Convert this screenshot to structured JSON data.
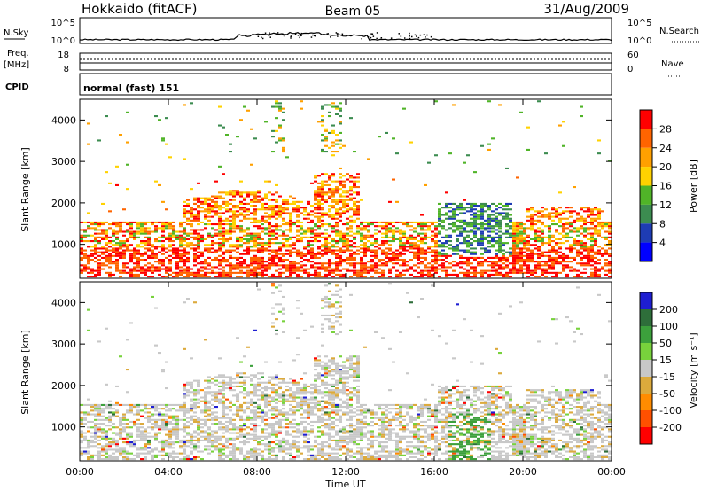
{
  "header": {
    "radar": "Hokkaido (fitACF)",
    "beam": "Beam 05",
    "date": "31/Aug/2009"
  },
  "summary_panels": {
    "nsky": {
      "label": "N.Sky",
      "ticks": [
        "10^5",
        "10^0"
      ],
      "right_label": "N.Search",
      "right_ticks": [
        "10^5",
        "10^0"
      ]
    },
    "freq": {
      "label_1": "Freq.",
      "label_2": "[MHz]",
      "ticks": [
        "18",
        "8"
      ],
      "right_label": "Nave",
      "right_ticks": [
        "60",
        "0"
      ]
    },
    "cpid": {
      "label": "CPID",
      "value": "normal (fast) 151"
    }
  },
  "colors": {
    "power": [
      "#0000ff",
      "#1e3cb4",
      "#3c8c50",
      "#50b428",
      "#ffd200",
      "#ffa000",
      "#ff6400",
      "#ff0000"
    ],
    "velocity": [
      "#1e1ed2",
      "#2e6e3a",
      "#3ca03c",
      "#78d23c",
      "#c8c8c8",
      "#dcaa3c",
      "#ff8c00",
      "#ff5000",
      "#ff0000"
    ]
  },
  "chart_data": [
    {
      "type": "heatmap",
      "name": "power",
      "ylabel": "Slant Range [km]",
      "ylim": [
        180,
        4500
      ],
      "yticks": [
        "1000",
        "2000",
        "3000",
        "4000"
      ],
      "xlabel": "Time UT",
      "xticks": [
        "00:00",
        "04:00",
        "08:00",
        "12:00",
        "16:00",
        "20:00",
        "00:00"
      ],
      "xlim": [
        "00:00",
        "24:00"
      ],
      "colorbar": {
        "label": "Power [dB]",
        "ticks": [
          "28",
          "24",
          "20",
          "16",
          "12",
          "8",
          "4"
        ],
        "range": [
          0,
          32
        ]
      }
    },
    {
      "type": "heatmap",
      "name": "velocity",
      "ylabel": "Slant Range [km]",
      "ylim": [
        180,
        4500
      ],
      "yticks": [
        "1000",
        "2000",
        "3000",
        "4000"
      ],
      "xlabel": "Time UT",
      "xticks": [
        "00:00",
        "04:00",
        "08:00",
        "12:00",
        "16:00",
        "20:00",
        "00:00"
      ],
      "xlim": [
        "00:00",
        "24:00"
      ],
      "colorbar": {
        "label": "Velocity [m s⁻¹]",
        "ticks": [
          "200",
          "100",
          "50",
          "15",
          "-15",
          "-50",
          "-100",
          "-200"
        ],
        "range": [
          -250,
          250
        ]
      }
    }
  ]
}
